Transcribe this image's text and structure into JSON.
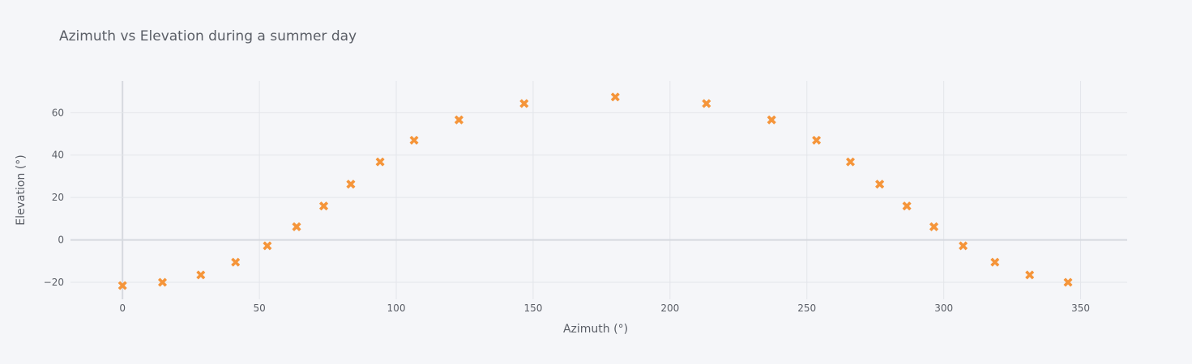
{
  "chart_data": {
    "type": "scatter",
    "title": "Azimuth vs Elevation during a summer day",
    "xlabel": "Azimuth (°)",
    "ylabel": "Elevation (°)",
    "xlim": [
      -19,
      367
    ],
    "ylim": [
      -28,
      75
    ],
    "xticks": [
      0,
      50,
      100,
      150,
      200,
      250,
      300,
      350
    ],
    "yticks": [
      -20,
      0,
      20,
      40,
      60
    ],
    "grid": true,
    "legend": "none",
    "marker": "x",
    "colors": {
      "marker": "#f5953a",
      "background": "#f5f6f9"
    },
    "series": [
      {
        "x": [
          0,
          14.6,
          28.6,
          41.3,
          52.9,
          63.6,
          73.5,
          83.4,
          94.1,
          106.5,
          122.9,
          146.7,
          180,
          213.3,
          237.1,
          253.5,
          265.9,
          276.6,
          286.5,
          296.4,
          307.1,
          318.7,
          331.4,
          345.4
        ],
        "y": [
          -21.5,
          -20.0,
          -16.5,
          -10.5,
          -2.8,
          6.2,
          16.0,
          26.3,
          36.8,
          47.0,
          56.6,
          64.3,
          67.4,
          64.3,
          56.6,
          47.0,
          36.8,
          26.3,
          16.0,
          6.2,
          -2.8,
          -10.5,
          -16.5,
          -20.0
        ]
      }
    ]
  }
}
